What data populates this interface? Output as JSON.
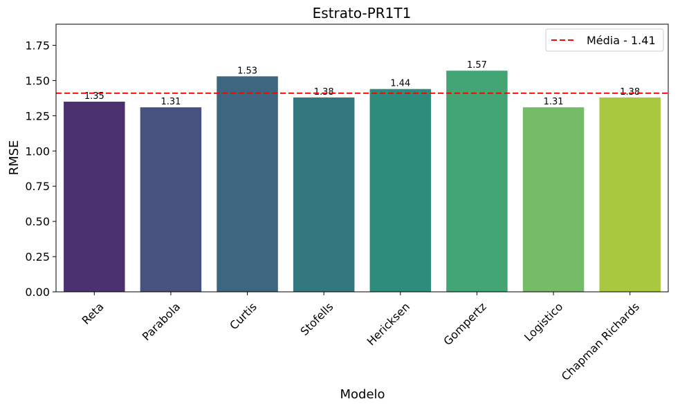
{
  "chart_data": {
    "type": "bar",
    "title": "Estrato-PR1T1",
    "xlabel": "Modelo",
    "ylabel": "RMSE",
    "categories": [
      "Reta",
      "Parabola",
      "Curtis",
      "Stofells",
      "Hericksen",
      "Gompertz",
      "Logistico",
      "Chapman Richards"
    ],
    "values": [
      1.35,
      1.31,
      1.53,
      1.38,
      1.44,
      1.57,
      1.31,
      1.38
    ],
    "value_labels": [
      "1.35",
      "1.31",
      "1.53",
      "1.38",
      "1.44",
      "1.57",
      "1.31",
      "1.38"
    ],
    "colors": [
      "#4b3170",
      "#47527f",
      "#3e6680",
      "#34787f",
      "#2d8c7b",
      "#43a574",
      "#74bc67",
      "#a9c840"
    ],
    "ylim": [
      0,
      1.9
    ],
    "yticks": [
      0.0,
      0.25,
      0.5,
      0.75,
      1.0,
      1.25,
      1.5,
      1.75
    ],
    "ytick_labels": [
      "0.00",
      "0.25",
      "0.50",
      "0.75",
      "1.00",
      "1.25",
      "1.50",
      "1.75"
    ],
    "mean_line": {
      "value": 1.41,
      "color": "#ff0000",
      "style": "dashed"
    },
    "legend": {
      "placement": "top-right",
      "entries": [
        "Média - 1.41"
      ]
    },
    "grid": false
  }
}
